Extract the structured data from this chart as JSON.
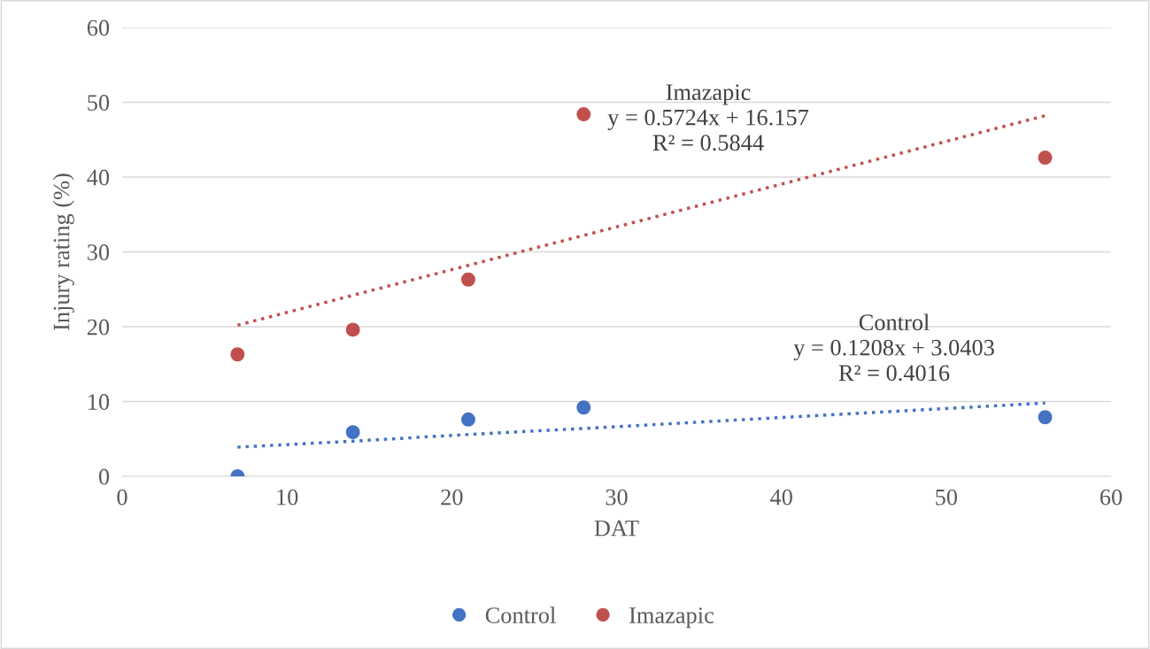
{
  "chart_data": {
    "type": "scatter",
    "xlabel": "DAT",
    "ylabel": "Injury rating (%)",
    "xlim": [
      0,
      60
    ],
    "xticks": [
      0,
      10,
      20,
      30,
      40,
      50,
      60
    ],
    "ylim": [
      0,
      60
    ],
    "yticks": [
      0,
      10,
      20,
      30,
      40,
      50,
      60
    ],
    "grid": "y",
    "legend": "bottom",
    "marker": "circle",
    "x": [
      7,
      14,
      21,
      28,
      56
    ],
    "series": [
      {
        "name": "Control",
        "color": "#4472c4",
        "values": [
          0,
          5.9,
          7.6,
          9.2,
          7.9
        ]
      },
      {
        "name": "Imazapic",
        "color": "#c0504d",
        "values": [
          16.3,
          19.6,
          26.3,
          48.4,
          42.6
        ]
      },
      {
        "type": "line",
        "color": "#4472c4",
        "line_style": "dotted",
        "marker": "none",
        "values": [
          3.9,
          4.7,
          5.6,
          6.4,
          9.8
        ]
      },
      {
        "type": "line",
        "color": "#c0504d",
        "line_style": "dotted",
        "marker": "none",
        "values": [
          20.2,
          24.2,
          28.2,
          32.2,
          48.2
        ]
      }
    ],
    "annotations": [
      "Control\ny = 0.1208x + 3.0403\nR² = 0.4016",
      "Imazapic\ny = 0.5724x + 16.157\nR² = 0.5844"
    ]
  }
}
